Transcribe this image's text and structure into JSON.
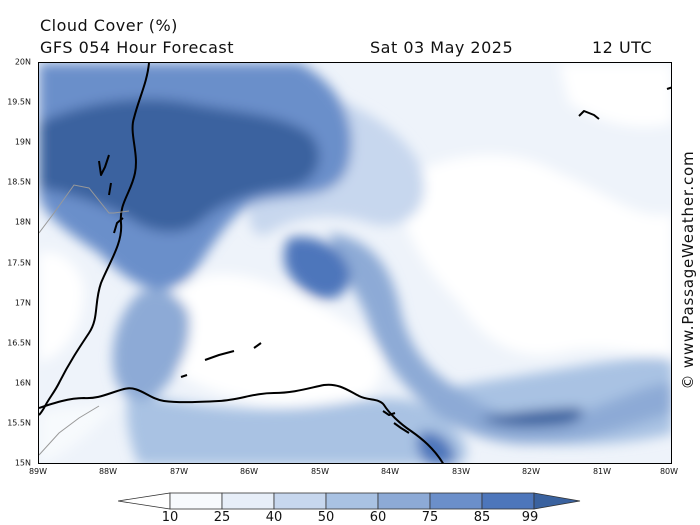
{
  "header": {
    "title": "Cloud Cover (%)",
    "subtitle": "GFS 054 Hour Forecast",
    "date": "Sat 03 May 2025",
    "time": "12 UTC"
  },
  "watermark": "© www.PassageWeather.com",
  "map": {
    "lat_labels": [
      "20N",
      "19.5N",
      "19N",
      "18.5N",
      "18N",
      "17.5N",
      "17N",
      "16.5N",
      "16N",
      "15.5N",
      "15N"
    ],
    "lon_labels": [
      "89W",
      "88W",
      "87W",
      "86W",
      "85W",
      "84W",
      "83W",
      "82W",
      "81W",
      "80W"
    ],
    "lat_range": [
      15,
      20
    ],
    "lon_range": [
      -89,
      -80
    ],
    "cloud_cover_scale": "percent",
    "colors": {
      "c10": "#f7fafd",
      "c25": "#e7eef8",
      "c40": "#c7d7ee",
      "c50": "#a9c2e3",
      "c60": "#8daad6",
      "c75": "#6b8fca",
      "c85": "#4d76bb",
      "c99": "#3a629f",
      "coast": "#000000",
      "border": "#999999"
    }
  },
  "colorbar": {
    "labels": [
      "10",
      "25",
      "40",
      "50",
      "60",
      "75",
      "85",
      "99"
    ],
    "colors": [
      "#f7fafd",
      "#e7eef8",
      "#c7d7ee",
      "#a9c2e3",
      "#8daad6",
      "#6b8fca",
      "#4d76bb",
      "#3a629f"
    ]
  }
}
